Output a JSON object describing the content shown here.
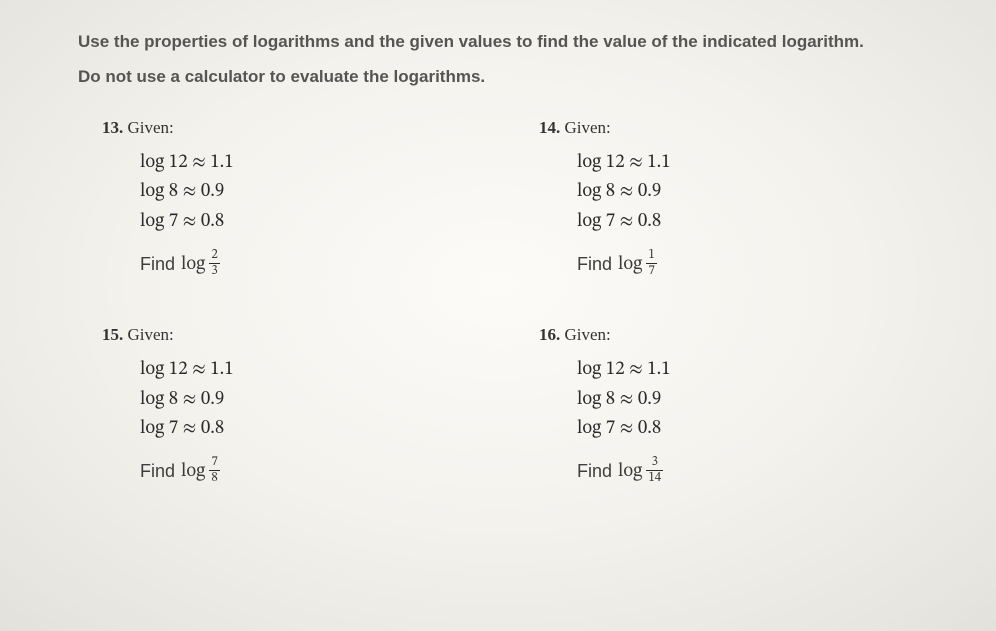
{
  "instructions": {
    "line1": "Use the properties of logarithms and the given values to find the value of the indicated logarithm.",
    "line2": "Do not use a calculator to evaluate the logarithms."
  },
  "shared": {
    "given_label": "Given:",
    "find_label": "Find",
    "log_word": "log",
    "approx": "≈",
    "givens": [
      {
        "expr": "log 12",
        "val": "1.1"
      },
      {
        "expr": "log 8",
        "val": "0.9"
      },
      {
        "expr": "log 7",
        "val": "0.8"
      }
    ]
  },
  "problems": [
    {
      "num": "13.",
      "frac_num": "2",
      "frac_den": "3"
    },
    {
      "num": "14.",
      "frac_num": "1",
      "frac_den": "7"
    },
    {
      "num": "15.",
      "frac_num": "7",
      "frac_den": "8"
    },
    {
      "num": "16.",
      "frac_num": "3",
      "frac_den": "14"
    }
  ]
}
